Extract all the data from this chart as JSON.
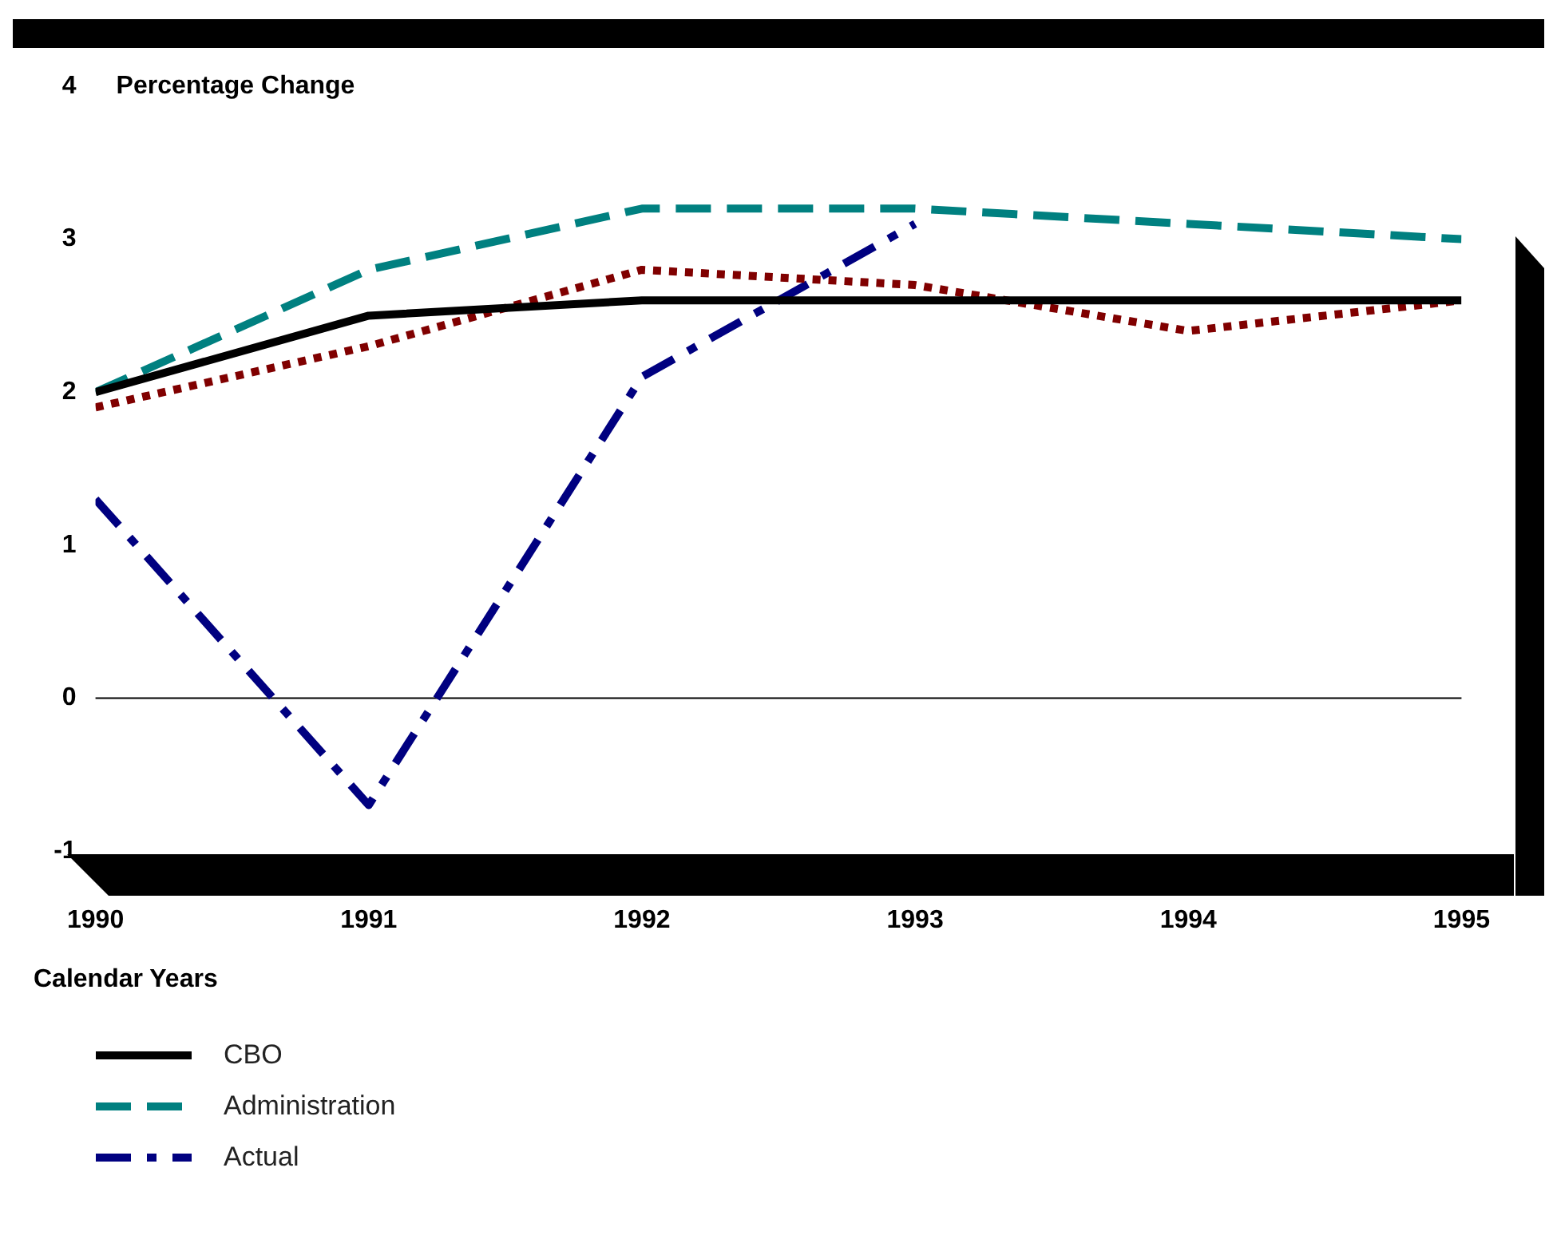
{
  "chart_data": {
    "type": "line",
    "ylabel": "Percentage Change",
    "xlabel": "Calendar Years",
    "x": [
      1990,
      1991,
      1992,
      1993,
      1994,
      1995
    ],
    "xlim": [
      1990,
      1995
    ],
    "xticks": [
      1990,
      1991,
      1992,
      1993,
      1994,
      1995
    ],
    "ylim": [
      -1,
      4
    ],
    "yticks": [
      -1,
      0,
      1,
      2,
      3,
      4
    ],
    "grid": false,
    "legend": "bottom left",
    "marker": "none",
    "ref_lines": [
      {
        "axis": "y",
        "value": 0,
        "color": "#000000"
      }
    ],
    "series": [
      {
        "name": "CBO",
        "color": "#000000",
        "line_style": "solid",
        "values": [
          2.0,
          2.5,
          2.6,
          2.6,
          2.6,
          2.6
        ]
      },
      {
        "name": "Administration",
        "color": "#008080",
        "line_style": "dashed",
        "values": [
          2.0,
          2.8,
          3.2,
          3.2,
          3.1,
          3.0
        ]
      },
      {
        "color": "#800000",
        "line_style": "dotted",
        "values": [
          1.9,
          2.3,
          2.8,
          2.7,
          2.4,
          2.6
        ]
      },
      {
        "name": "Actual",
        "color": "#000080",
        "line_style": "dashdot",
        "values": [
          1.3,
          -0.7,
          2.1,
          3.1,
          null,
          null
        ]
      }
    ]
  }
}
